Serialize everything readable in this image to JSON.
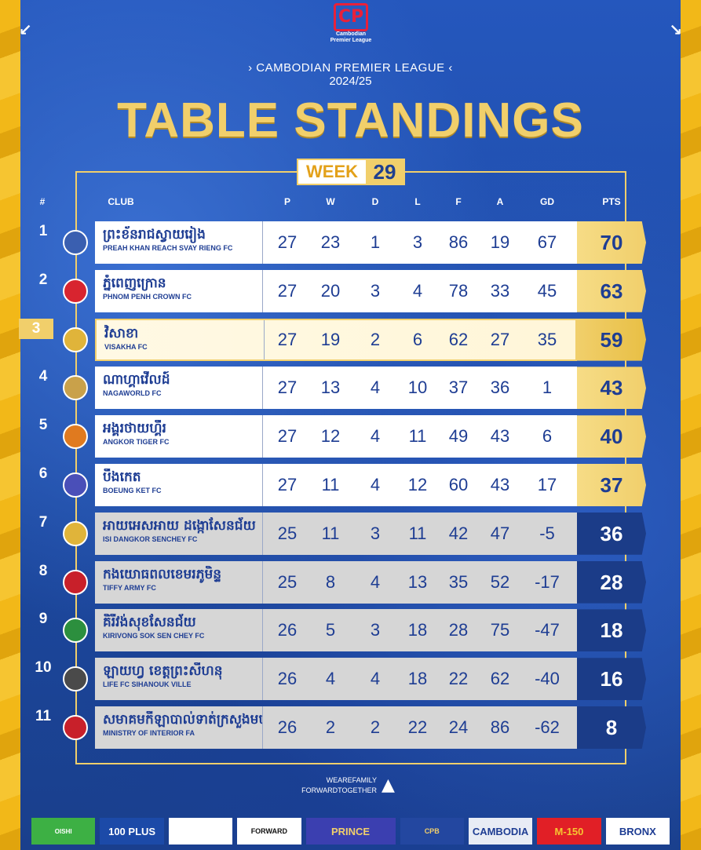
{
  "header": {
    "logo_text": "Cambodian Premier League",
    "league": "› CAMBODIAN PREMIER LEAGUE ‹",
    "season": "2024/25",
    "title": "TABLE STANDINGS",
    "week_label": "WEEK",
    "week_number": "29"
  },
  "columns": {
    "pos": "#",
    "club": "CLUB",
    "p": "P",
    "w": "W",
    "d": "D",
    "l": "L",
    "f": "F",
    "a": "A",
    "gd": "GD",
    "pts": "PTS"
  },
  "rows": [
    {
      "pos": "1",
      "km": "ព្រះខ័នរាជស្វាយរៀង",
      "en": "PREAH KHAN REACH SVAY RIENG FC",
      "p": "27",
      "w": "23",
      "d": "1",
      "l": "3",
      "f": "86",
      "a": "19",
      "gd": "67",
      "pts": "70",
      "crest": "#3a5fb0"
    },
    {
      "pos": "2",
      "km": "ភ្នំពេញក្រោន",
      "en": "PHNOM PENH CROWN FC",
      "p": "27",
      "w": "20",
      "d": "3",
      "l": "4",
      "f": "78",
      "a": "33",
      "gd": "45",
      "pts": "63",
      "crest": "#d8242f"
    },
    {
      "pos": "3",
      "km": "វិសាខា",
      "en": "VISAKHA FC",
      "p": "27",
      "w": "19",
      "d": "2",
      "l": "6",
      "f": "62",
      "a": "27",
      "gd": "35",
      "pts": "59",
      "crest": "#e0b43a"
    },
    {
      "pos": "4",
      "km": "ណាហ្គាវើលដ៍",
      "en": "NAGAWORLD FC",
      "p": "27",
      "w": "13",
      "d": "4",
      "l": "10",
      "f": "37",
      "a": "36",
      "gd": "1",
      "pts": "43",
      "crest": "#c9a14a"
    },
    {
      "pos": "5",
      "km": "អង្គរថាយហ្គឺរ",
      "en": "ANGKOR TIGER FC",
      "p": "27",
      "w": "12",
      "d": "4",
      "l": "11",
      "f": "49",
      "a": "43",
      "gd": "6",
      "pts": "40",
      "crest": "#e07a1f"
    },
    {
      "pos": "6",
      "km": "បឹងកេត",
      "en": "BOEUNG KET FC",
      "p": "27",
      "w": "11",
      "d": "4",
      "l": "12",
      "f": "60",
      "a": "43",
      "gd": "17",
      "pts": "37",
      "crest": "#4a4fb8"
    },
    {
      "pos": "7",
      "km": "អាយអេសអាយ ដង្កោសែនជ័យ",
      "en": "ISI DANGKOR SENCHEY FC",
      "p": "25",
      "w": "11",
      "d": "3",
      "l": "11",
      "f": "42",
      "a": "47",
      "gd": "-5",
      "pts": "36",
      "crest": "#e0b43a"
    },
    {
      "pos": "8",
      "km": "កងយោធពលខេមរភូមិន្ទ",
      "en": "TIFFY ARMY FC",
      "p": "25",
      "w": "8",
      "d": "4",
      "l": "13",
      "f": "35",
      "a": "52",
      "gd": "-17",
      "pts": "28",
      "crest": "#c8202a"
    },
    {
      "pos": "9",
      "km": "គិរីវង់សុខសែនជ័យ",
      "en": "KIRIVONG SOK SEN CHEY FC",
      "p": "26",
      "w": "5",
      "d": "3",
      "l": "18",
      "f": "28",
      "a": "75",
      "gd": "-47",
      "pts": "18",
      "crest": "#2c8f3e"
    },
    {
      "pos": "10",
      "km": "ឡាយហ្វ ខេត្តព្រះសីហនុ",
      "en": "LIFE FC SIHANOUK VILLE",
      "p": "26",
      "w": "4",
      "d": "4",
      "l": "18",
      "f": "22",
      "a": "62",
      "gd": "-40",
      "pts": "16",
      "crest": "#4a4a4a"
    },
    {
      "pos": "11",
      "km": "សមាគមកីឡាបាល់ទាត់ក្រសួងមហាផ្ទៃ",
      "en": "MINISTRY OF INTERIOR FA",
      "p": "26",
      "w": "2",
      "d": "2",
      "l": "22",
      "f": "24",
      "a": "86",
      "gd": "-62",
      "pts": "8",
      "crest": "#c8202a"
    }
  ],
  "footer": {
    "line1": "WEAREFAMILY",
    "line2": "FORWARDTOGETHER"
  },
  "sponsors": [
    "OISHI",
    "100 PLUS",
    "",
    "FORWARD",
    "PRINCE",
    "CPB",
    "CAMBODIA",
    "M-150",
    "BRONX"
  ]
}
